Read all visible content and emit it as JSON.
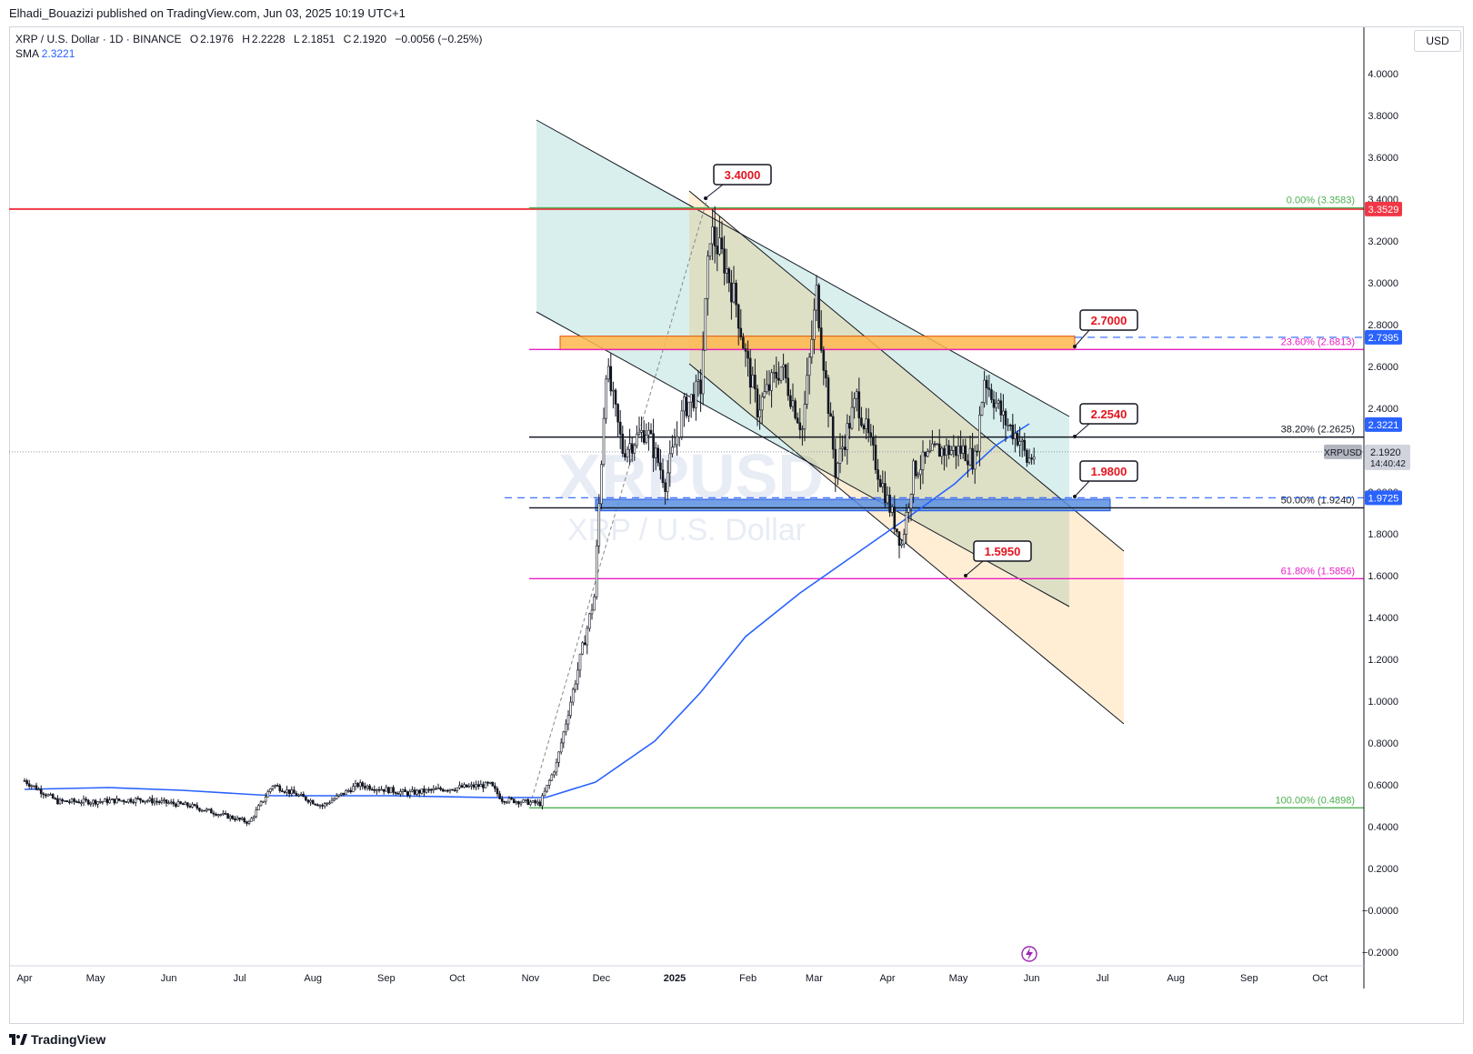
{
  "publisher": "Elhadi_Bouazizi published on TradingView.com, Jun 03, 2025 10:19 UTC+1",
  "legend": {
    "symbol": "XRP / U.S. Dollar · 1D · BINANCE",
    "o_label": "O",
    "o": "2.1976",
    "h_label": "H",
    "h": "2.2228",
    "l_label": "L",
    "l": "2.1851",
    "c_label": "C",
    "c": "2.1920",
    "change": "−0.0056 (−0.25%)",
    "sma_label": "SMA",
    "sma": "2.3221"
  },
  "currency": "USD",
  "watermark": {
    "ticker": "XRPUSD",
    "name": "XRP / U.S. Dollar"
  },
  "brand": "TradingView",
  "chart_data": {
    "type": "candlestick",
    "y_ticks": [
      "4.0000",
      "3.8000",
      "3.6000",
      "3.4000",
      "3.2000",
      "3.0000",
      "2.8000",
      "2.6000",
      "2.4000",
      "2.2000",
      "2.0000",
      "1.8000",
      "1.6000",
      "1.4000",
      "1.2000",
      "1.0000",
      "0.8000",
      "0.6000",
      "0.4000",
      "0.2000",
      "−0.0000",
      "−0.2000"
    ],
    "x_ticks": [
      "Apr",
      "May",
      "Jun",
      "Jul",
      "Aug",
      "Sep",
      "Oct",
      "Nov",
      "Dec",
      "2025",
      "Feb",
      "Mar",
      "Apr",
      "May",
      "Jun",
      "Jul",
      "Aug",
      "Sep",
      "Oct"
    ],
    "ylim": [
      -0.2,
      4.0
    ],
    "price_path": [
      [
        "2024-04-01",
        0.62
      ],
      [
        "2024-04-15",
        0.52
      ],
      [
        "2024-05-01",
        0.52
      ],
      [
        "2024-05-20",
        0.53
      ],
      [
        "2024-06-10",
        0.5
      ],
      [
        "2024-07-05",
        0.42
      ],
      [
        "2024-07-15",
        0.6
      ],
      [
        "2024-08-05",
        0.5
      ],
      [
        "2024-08-20",
        0.6
      ],
      [
        "2024-09-10",
        0.56
      ],
      [
        "2024-09-25",
        0.58
      ],
      [
        "2024-10-15",
        0.6
      ],
      [
        "2024-10-20",
        0.53
      ],
      [
        "2024-11-05",
        0.51
      ],
      [
        "2024-11-12",
        0.7
      ],
      [
        "2024-11-20",
        1.1
      ],
      [
        "2024-11-28",
        1.5
      ],
      [
        "2024-12-03",
        2.6
      ],
      [
        "2024-12-10",
        2.2
      ],
      [
        "2024-12-20",
        2.3
      ],
      [
        "2024-12-28",
        2.05
      ],
      [
        "2025-01-05",
        2.4
      ],
      [
        "2025-01-12",
        2.5
      ],
      [
        "2025-01-16",
        3.25
      ],
      [
        "2025-01-22",
        3.1
      ],
      [
        "2025-01-27",
        2.9
      ],
      [
        "2025-01-31",
        2.65
      ],
      [
        "2025-02-05",
        2.4
      ],
      [
        "2025-02-15",
        2.6
      ],
      [
        "2025-02-24",
        2.3
      ],
      [
        "2025-03-02",
        2.95
      ],
      [
        "2025-03-10",
        2.1
      ],
      [
        "2025-03-19",
        2.45
      ],
      [
        "2025-03-28",
        2.1
      ],
      [
        "2025-04-07",
        1.75
      ],
      [
        "2025-04-12",
        2.1
      ],
      [
        "2025-04-22",
        2.2
      ],
      [
        "2025-05-03",
        2.2
      ],
      [
        "2025-05-08",
        2.15
      ],
      [
        "2025-05-12",
        2.55
      ],
      [
        "2025-05-20",
        2.35
      ],
      [
        "2025-05-27",
        2.25
      ],
      [
        "2025-05-30",
        2.15
      ],
      [
        "2025-06-03",
        2.19
      ]
    ],
    "sma": {
      "label": "SMA",
      "last": 2.3221,
      "color": "#2962ff"
    },
    "horizontal_levels": [
      {
        "price": 3.3529,
        "color": "#f23645",
        "tag": "3.3529"
      },
      {
        "price": 2.2625,
        "color": "#131722",
        "fib": "38.20% (2.2625)"
      },
      {
        "price": 1.924,
        "color": "#131722",
        "fib": "50.00% (1.9240)"
      },
      {
        "price": 1.5856,
        "color": "#e91ec4",
        "fib": "61.80% (1.5856)"
      },
      {
        "price": 2.6813,
        "color": "#e91ec4",
        "fib": "23.60% (2.6813)"
      },
      {
        "price": 3.3583,
        "color": "#4caf50",
        "fib": "0.00% (3.3583)"
      },
      {
        "price": 0.4898,
        "color": "#4caf50",
        "fib": "100.00% (0.4898)"
      }
    ],
    "zones": [
      {
        "from": 2.68,
        "to": 2.745,
        "color": "#ffb74d"
      },
      {
        "from": 1.91,
        "to": 1.965,
        "color": "#5b8fe0"
      }
    ],
    "callouts": [
      "3.4000",
      "2.7000",
      "2.2540",
      "1.9800",
      "1.5950"
    ],
    "price_tags": [
      {
        "price": 2.7395,
        "text": "2.7395",
        "color": "#2962ff"
      },
      {
        "price": 2.3221,
        "text": "2.3221",
        "color": "#2962ff"
      },
      {
        "price": 1.9725,
        "text": "1.9725",
        "color": "#2962ff"
      }
    ],
    "last_price": {
      "symbol": "XRPUSD",
      "price": "2.1920",
      "countdown": "14:40:42",
      "value": 2.192
    }
  }
}
